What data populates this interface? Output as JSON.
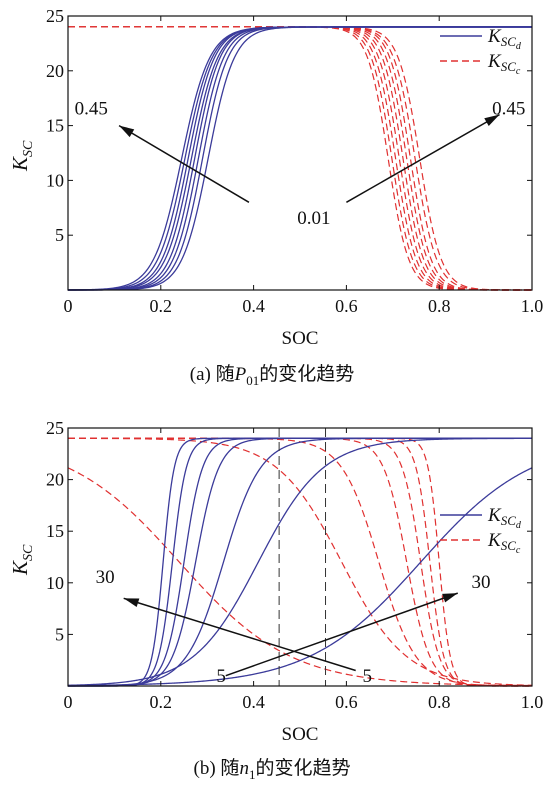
{
  "colors": {
    "discharge": "#3b3b9a",
    "charge": "#e03030",
    "axis": "#111111"
  },
  "chart_data": [
    {
      "type": "line",
      "caption_prefix": "(a) 随",
      "caption_var": "P",
      "caption_sub": "01",
      "caption_suffix": "的变化趋势",
      "xlabel": "SOC",
      "ylabel_main": "K",
      "ylabel_sub": "SC",
      "xlim": [
        0,
        1.0
      ],
      "ylim": [
        0,
        25
      ],
      "xticks": [
        0,
        0.2,
        0.4,
        0.6,
        0.8,
        1.0
      ],
      "xtick_labels": [
        "0",
        "0.2",
        "0.4",
        "0.6",
        "0.8",
        "1.0"
      ],
      "yticks": [
        5,
        10,
        15,
        20,
        25
      ],
      "ytick_labels": [
        "5",
        "10",
        "15",
        "20",
        "25"
      ],
      "legend": [
        {
          "main": "K",
          "sub": "SC",
          "subsub": "d",
          "style": "solid",
          "color": "#3b3b9a"
        },
        {
          "main": "K",
          "sub": "SC",
          "subsub": "c",
          "style": "dashed",
          "color": "#e03030"
        }
      ],
      "legend_position": "top-right",
      "annotations": [
        {
          "text": "0.45",
          "x": 0.05,
          "y": 16
        },
        {
          "text": "0.45",
          "x": 0.95,
          "y": 16
        },
        {
          "text": "0.01",
          "x": 0.53,
          "y": 6
        }
      ],
      "arrows": [
        {
          "from": [
            0.39,
            8
          ],
          "to": [
            0.11,
            15
          ]
        },
        {
          "from": [
            0.6,
            8
          ],
          "to": [
            0.93,
            16
          ]
        }
      ],
      "ymax": 24,
      "discharge_curves": [
        {
          "center": 0.245,
          "width": 0.03
        },
        {
          "center": 0.252,
          "width": 0.029
        },
        {
          "center": 0.259,
          "width": 0.028
        },
        {
          "center": 0.266,
          "width": 0.028
        },
        {
          "center": 0.273,
          "width": 0.027
        },
        {
          "center": 0.281,
          "width": 0.027
        },
        {
          "center": 0.29,
          "width": 0.027
        },
        {
          "center": 0.302,
          "width": 0.028
        }
      ],
      "charge_curves": [
        {
          "center": 0.69,
          "width": 0.022
        },
        {
          "center": 0.698,
          "width": 0.022
        },
        {
          "center": 0.706,
          "width": 0.022
        },
        {
          "center": 0.714,
          "width": 0.022
        },
        {
          "center": 0.722,
          "width": 0.022
        },
        {
          "center": 0.73,
          "width": 0.022
        },
        {
          "center": 0.738,
          "width": 0.022
        },
        {
          "center": 0.748,
          "width": 0.023
        },
        {
          "center": 0.758,
          "width": 0.023
        }
      ],
      "vlines": []
    },
    {
      "type": "line",
      "caption_prefix": "(b) 随",
      "caption_var": "n",
      "caption_sub": "1",
      "caption_suffix": "的变化趋势",
      "xlabel": "SOC",
      "ylabel_main": "K",
      "ylabel_sub": "SC",
      "xlim": [
        0,
        1.0
      ],
      "ylim": [
        0,
        25
      ],
      "xticks": [
        0,
        0.2,
        0.4,
        0.6,
        0.8,
        1.0
      ],
      "xtick_labels": [
        "0",
        "0.2",
        "0.4",
        "0.6",
        "0.8",
        "1.0"
      ],
      "yticks": [
        5,
        10,
        15,
        20,
        25
      ],
      "ytick_labels": [
        "5",
        "10",
        "15",
        "20",
        "25"
      ],
      "legend": [
        {
          "main": "K",
          "sub": "SC",
          "subsub": "d",
          "style": "solid",
          "color": "#3b3b9a"
        },
        {
          "main": "K",
          "sub": "SC",
          "subsub": "c",
          "style": "dashed",
          "color": "#e03030"
        }
      ],
      "legend_position": "center-right",
      "annotations": [
        {
          "text": "30",
          "x": 0.08,
          "y": 10
        },
        {
          "text": "30",
          "x": 0.89,
          "y": 9.5
        },
        {
          "text": "5",
          "x": 0.33,
          "y": 0.4
        },
        {
          "text": "5",
          "x": 0.645,
          "y": 0.4
        }
      ],
      "arrows": [
        {
          "from": [
            0.62,
            1.5
          ],
          "to": [
            0.12,
            8.5
          ]
        },
        {
          "from": [
            0.34,
            1.0
          ],
          "to": [
            0.84,
            9.0
          ]
        }
      ],
      "ymax": 24,
      "discharge_curves": [
        {
          "center": 0.205,
          "width": 0.012
        },
        {
          "center": 0.225,
          "width": 0.015
        },
        {
          "center": 0.25,
          "width": 0.02
        },
        {
          "center": 0.275,
          "width": 0.025
        },
        {
          "center": 0.335,
          "width": 0.04
        },
        {
          "center": 0.41,
          "width": 0.07
        },
        {
          "center": 0.76,
          "width": 0.12
        }
      ],
      "charge_curves": [
        {
          "center": 0.8,
          "width": 0.012
        },
        {
          "center": 0.78,
          "width": 0.015
        },
        {
          "center": 0.76,
          "width": 0.02
        },
        {
          "center": 0.73,
          "width": 0.025
        },
        {
          "center": 0.67,
          "width": 0.04
        },
        {
          "center": 0.59,
          "width": 0.07
        },
        {
          "center": 0.24,
          "width": 0.12
        }
      ],
      "vlines": [
        0.455,
        0.555
      ]
    }
  ]
}
